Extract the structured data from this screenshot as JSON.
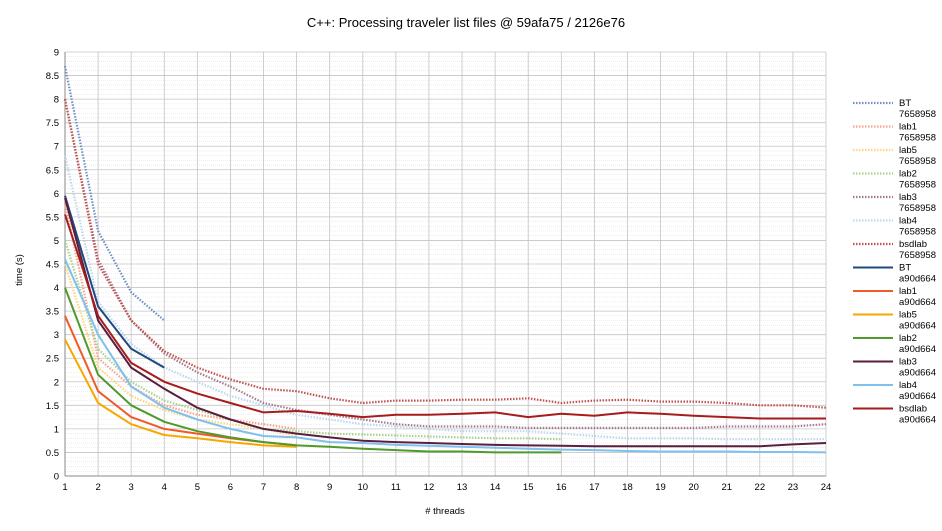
{
  "chart_data": {
    "type": "line",
    "title": "C++: Processing traveler list files @ 59afa75 / 2126e76",
    "xlabel": "# threads",
    "ylabel": "time (s)",
    "xlim": [
      1,
      24
    ],
    "ylim": [
      0,
      9
    ],
    "x_ticks": [
      "1",
      "2",
      "3",
      "4",
      "5",
      "6",
      "7",
      "8",
      "9",
      "10",
      "11",
      "12",
      "13",
      "14",
      "15",
      "16",
      "17",
      "18",
      "19",
      "20",
      "21",
      "22",
      "23",
      "24"
    ],
    "y_ticks": [
      "0",
      "0.5",
      "1",
      "1.5",
      "2",
      "2.5",
      "3",
      "3.5",
      "4",
      "4.5",
      "5",
      "5.5",
      "6",
      "6.5",
      "7",
      "7.5",
      "8",
      "8.5",
      "9"
    ],
    "grid": true,
    "minor_grid": true,
    "legend_position": "right",
    "series": [
      {
        "name": "BT",
        "commit": "7658958",
        "color": "#6d8fc4",
        "style": "dotted",
        "x": [
          1,
          2,
          3,
          4
        ],
        "y": [
          8.7,
          5.2,
          3.9,
          3.3
        ]
      },
      {
        "name": "lab1",
        "commit": "7658958",
        "color": "#f4a58a",
        "style": "dotted",
        "x": [
          1,
          2,
          3,
          4,
          5,
          6,
          7,
          8
        ],
        "y": [
          5.8,
          2.5,
          1.9,
          1.5,
          1.3,
          1.2,
          1.1,
          1.0
        ]
      },
      {
        "name": "lab5",
        "commit": "7658958",
        "color": "#fdd57e",
        "style": "dotted",
        "x": [
          1,
          2,
          3,
          4,
          5,
          6,
          7,
          8
        ],
        "y": [
          4.5,
          2.3,
          1.7,
          1.4,
          1.2,
          1.1,
          1.0,
          0.85
        ]
      },
      {
        "name": "lab2",
        "commit": "7658958",
        "color": "#a9d18e",
        "style": "dotted",
        "x": [
          1,
          2,
          3,
          4,
          5,
          6,
          7,
          8,
          9,
          10,
          11,
          12,
          13,
          14,
          15,
          16
        ],
        "y": [
          5.0,
          2.7,
          2.0,
          1.6,
          1.4,
          1.2,
          1.0,
          0.95,
          0.9,
          0.88,
          0.86,
          0.84,
          0.82,
          0.8,
          0.8,
          0.78
        ]
      },
      {
        "name": "lab3",
        "commit": "7658958",
        "color": "#a57a8e",
        "style": "dotted",
        "x": [
          1,
          2,
          3,
          4,
          5,
          6,
          7,
          8,
          9,
          10,
          11,
          12,
          13,
          14,
          15,
          16,
          17,
          18,
          19,
          20,
          21,
          22,
          23,
          24
        ],
        "y": [
          8.0,
          4.6,
          3.3,
          2.6,
          2.2,
          1.9,
          1.55,
          1.4,
          1.3,
          1.2,
          1.1,
          1.05,
          1.05,
          1.05,
          1.02,
          1.02,
          1.02,
          1.02,
          1.02,
          1.02,
          1.05,
          1.05,
          1.05,
          1.1
        ]
      },
      {
        "name": "lab4",
        "commit": "7658958",
        "color": "#bdd7ee",
        "style": "dotted",
        "x": [
          1,
          2,
          3,
          4,
          5,
          6,
          7,
          8,
          9,
          10,
          11,
          12,
          13,
          14,
          15,
          16,
          17,
          18,
          19,
          20,
          21,
          22,
          23,
          24
        ],
        "y": [
          6.8,
          3.7,
          2.8,
          2.3,
          2.0,
          1.7,
          1.5,
          1.3,
          1.2,
          1.1,
          1.05,
          1.0,
          0.95,
          0.95,
          0.95,
          0.9,
          0.85,
          0.8,
          0.8,
          0.8,
          0.78,
          0.78,
          0.78,
          0.78
        ]
      },
      {
        "name": "bsdlab",
        "commit": "7658958",
        "color": "#c0504d",
        "style": "dotted",
        "x": [
          1,
          2,
          3,
          4,
          5,
          6,
          7,
          8,
          9,
          10,
          11,
          12,
          13,
          14,
          15,
          16,
          17,
          18,
          19,
          20,
          21,
          22,
          23,
          24
        ],
        "y": [
          8.0,
          4.5,
          3.3,
          2.65,
          2.3,
          2.05,
          1.85,
          1.8,
          1.65,
          1.55,
          1.6,
          1.6,
          1.62,
          1.62,
          1.65,
          1.55,
          1.6,
          1.62,
          1.58,
          1.58,
          1.55,
          1.5,
          1.5,
          1.45
        ]
      },
      {
        "name": "BT",
        "commit": "a90d664",
        "color": "#1f497d",
        "style": "solid",
        "x": [
          1,
          2,
          3,
          4
        ],
        "y": [
          5.95,
          3.6,
          2.7,
          2.3
        ]
      },
      {
        "name": "lab1",
        "commit": "a90d664",
        "color": "#f05a28",
        "style": "solid",
        "x": [
          1,
          2,
          3,
          4,
          5,
          6,
          7,
          8
        ],
        "y": [
          3.4,
          1.8,
          1.25,
          1.0,
          0.9,
          0.8,
          0.72,
          0.65
        ]
      },
      {
        "name": "lab5",
        "commit": "a90d664",
        "color": "#f7a800",
        "style": "solid",
        "x": [
          1,
          2,
          3,
          4,
          5,
          6,
          7,
          8
        ],
        "y": [
          2.9,
          1.55,
          1.1,
          0.87,
          0.8,
          0.72,
          0.65,
          0.62
        ]
      },
      {
        "name": "lab2",
        "commit": "a90d664",
        "color": "#4e9a2a",
        "style": "solid",
        "x": [
          1,
          2,
          3,
          4,
          5,
          6,
          7,
          8,
          9,
          10,
          11,
          12,
          13,
          14,
          15,
          16
        ],
        "y": [
          4.0,
          2.15,
          1.5,
          1.15,
          0.95,
          0.82,
          0.72,
          0.65,
          0.62,
          0.58,
          0.55,
          0.52,
          0.52,
          0.5,
          0.5,
          0.5
        ]
      },
      {
        "name": "lab3",
        "commit": "a90d664",
        "color": "#5b1e3d",
        "style": "solid",
        "x": [
          1,
          2,
          3,
          4,
          5,
          6,
          7,
          8,
          9,
          10,
          11,
          12,
          13,
          14,
          15,
          16,
          17,
          18,
          19,
          20,
          21,
          22,
          23,
          24
        ],
        "y": [
          5.9,
          3.3,
          2.3,
          1.85,
          1.45,
          1.2,
          1.0,
          0.9,
          0.82,
          0.75,
          0.72,
          0.7,
          0.68,
          0.66,
          0.65,
          0.64,
          0.63,
          0.63,
          0.63,
          0.63,
          0.63,
          0.63,
          0.67,
          0.7
        ]
      },
      {
        "name": "lab4",
        "commit": "a90d664",
        "color": "#7fc0ec",
        "style": "solid",
        "x": [
          1,
          2,
          3,
          4,
          5,
          6,
          7,
          8,
          9,
          10,
          11,
          12,
          13,
          14,
          15,
          16,
          17,
          18,
          19,
          20,
          21,
          22,
          23,
          24
        ],
        "y": [
          4.6,
          3.0,
          1.9,
          1.45,
          1.2,
          1.0,
          0.85,
          0.82,
          0.72,
          0.7,
          0.66,
          0.64,
          0.62,
          0.6,
          0.58,
          0.56,
          0.55,
          0.53,
          0.52,
          0.52,
          0.52,
          0.51,
          0.51,
          0.5
        ]
      },
      {
        "name": "bsdlab",
        "commit": "a90d664",
        "color": "#a61c1c",
        "style": "solid",
        "x": [
          1,
          2,
          3,
          4,
          5,
          6,
          7,
          8,
          9,
          10,
          11,
          12,
          13,
          14,
          15,
          16,
          17,
          18,
          19,
          20,
          21,
          22,
          23,
          24
        ],
        "y": [
          5.55,
          3.4,
          2.4,
          2.0,
          1.75,
          1.55,
          1.35,
          1.38,
          1.32,
          1.25,
          1.3,
          1.3,
          1.32,
          1.35,
          1.25,
          1.32,
          1.28,
          1.35,
          1.32,
          1.28,
          1.25,
          1.22,
          1.22,
          1.22
        ]
      }
    ]
  }
}
